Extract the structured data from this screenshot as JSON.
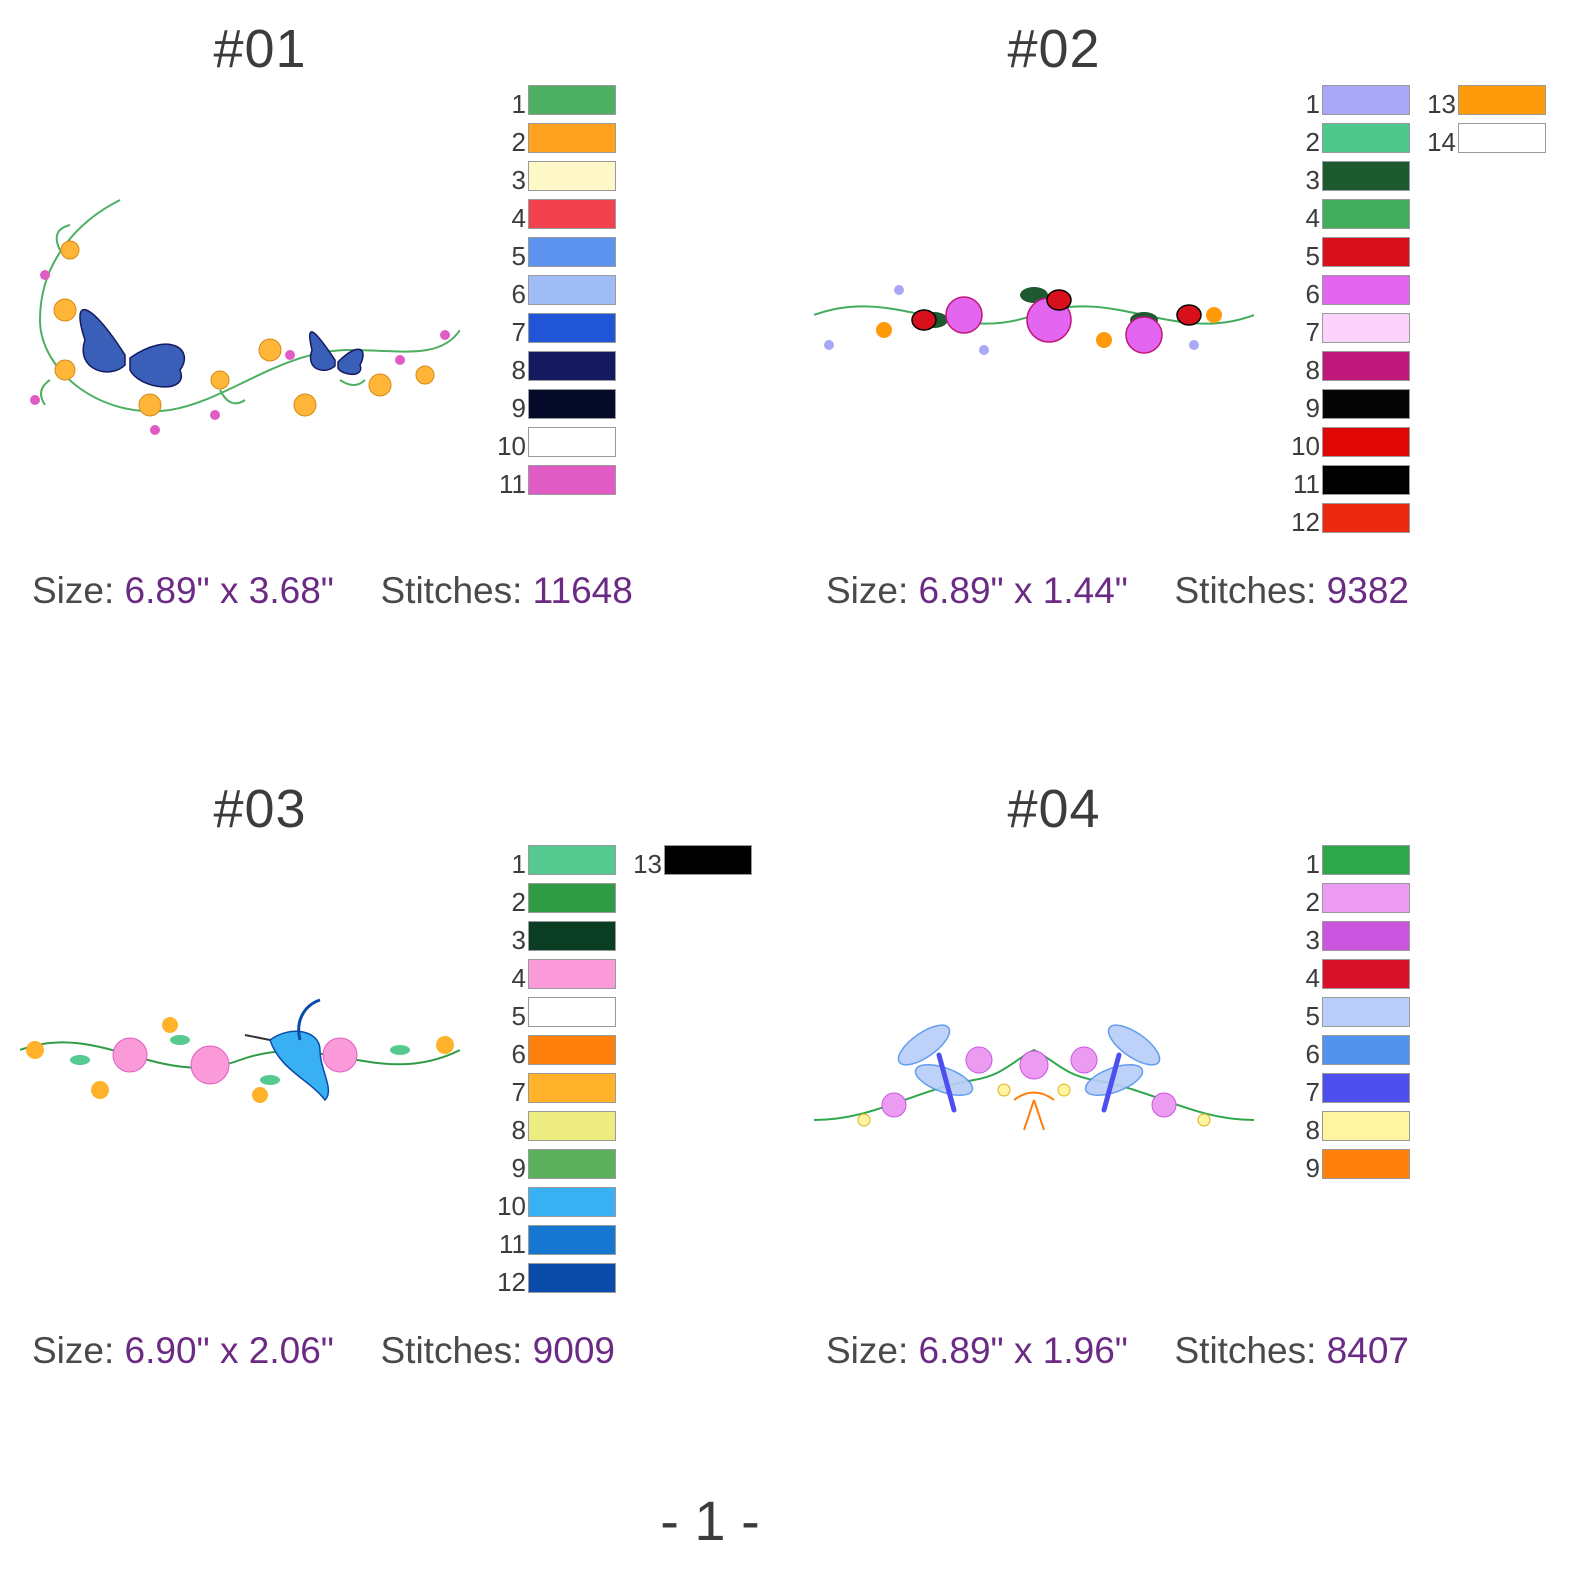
{
  "page_number": "- 1 -",
  "labels": {
    "size": "Size:",
    "stitches": "Stitches:",
    "times": "x"
  },
  "designs": [
    {
      "title": "#01",
      "width": "6.89\"",
      "height": "3.68\"",
      "stitches": "11648",
      "motif": "butterfly-floral-swag",
      "colors": [
        {
          "n": "1",
          "hex": "#4caf61"
        },
        {
          "n": "2",
          "hex": "#ffa21f"
        },
        {
          "n": "3",
          "hex": "#fff8c8"
        },
        {
          "n": "4",
          "hex": "#f2414e"
        },
        {
          "n": "5",
          "hex": "#5b93ef"
        },
        {
          "n": "6",
          "hex": "#9fbcf7"
        },
        {
          "n": "7",
          "hex": "#1f55d6"
        },
        {
          "n": "8",
          "hex": "#151a60"
        },
        {
          "n": "9",
          "hex": "#050a28"
        },
        {
          "n": "10",
          "hex": "#ffffff"
        },
        {
          "n": "11",
          "hex": "#e05cc4"
        }
      ]
    },
    {
      "title": "#02",
      "width": "6.89\"",
      "height": "1.44\"",
      "stitches": "9382",
      "motif": "ladybug-floral-border",
      "colors": [
        {
          "n": "1",
          "hex": "#a8a8f6"
        },
        {
          "n": "2",
          "hex": "#4ec88c"
        },
        {
          "n": "3",
          "hex": "#1d5a30"
        },
        {
          "n": "4",
          "hex": "#3fad5c"
        },
        {
          "n": "5",
          "hex": "#d8101b"
        },
        {
          "n": "6",
          "hex": "#e266f0"
        },
        {
          "n": "7",
          "hex": "#fbd2fb"
        },
        {
          "n": "8",
          "hex": "#c0177b"
        },
        {
          "n": "9",
          "hex": "#050505"
        },
        {
          "n": "10",
          "hex": "#e00606"
        },
        {
          "n": "11",
          "hex": "#000000"
        },
        {
          "n": "12",
          "hex": "#ec2a12"
        },
        {
          "n": "13",
          "hex": "#ff9a0a"
        },
        {
          "n": "14",
          "hex": "#ffffff"
        }
      ]
    },
    {
      "title": "#03",
      "width": "6.90\"",
      "height": "2.06\"",
      "stitches": "9009",
      "motif": "hummingbird-floral-border",
      "colors": [
        {
          "n": "1",
          "hex": "#55c98f"
        },
        {
          "n": "2",
          "hex": "#2f9c45"
        },
        {
          "n": "3",
          "hex": "#0b3d24"
        },
        {
          "n": "4",
          "hex": "#fb9ad8"
        },
        {
          "n": "5",
          "hex": "#ffffff"
        },
        {
          "n": "6",
          "hex": "#ff7f0d"
        },
        {
          "n": "7",
          "hex": "#ffb22a"
        },
        {
          "n": "8",
          "hex": "#ecec80"
        },
        {
          "n": "9",
          "hex": "#5bb05e"
        },
        {
          "n": "10",
          "hex": "#39b0f2"
        },
        {
          "n": "11",
          "hex": "#1577d0"
        },
        {
          "n": "12",
          "hex": "#0a4aa8"
        },
        {
          "n": "13",
          "hex": "#000000"
        }
      ]
    },
    {
      "title": "#04",
      "width": "6.89\"",
      "height": "1.96\"",
      "stitches": "8407",
      "motif": "dragonfly-floral-swag",
      "colors": [
        {
          "n": "1",
          "hex": "#2ea64a"
        },
        {
          "n": "2",
          "hex": "#ec9bf2"
        },
        {
          "n": "3",
          "hex": "#cc55e0"
        },
        {
          "n": "4",
          "hex": "#d8102a"
        },
        {
          "n": "5",
          "hex": "#b8cdf9"
        },
        {
          "n": "6",
          "hex": "#5293ee"
        },
        {
          "n": "7",
          "hex": "#4f4ff0"
        },
        {
          "n": "8",
          "hex": "#fff5a0"
        },
        {
          "n": "9",
          "hex": "#ff7f0d"
        }
      ]
    }
  ]
}
